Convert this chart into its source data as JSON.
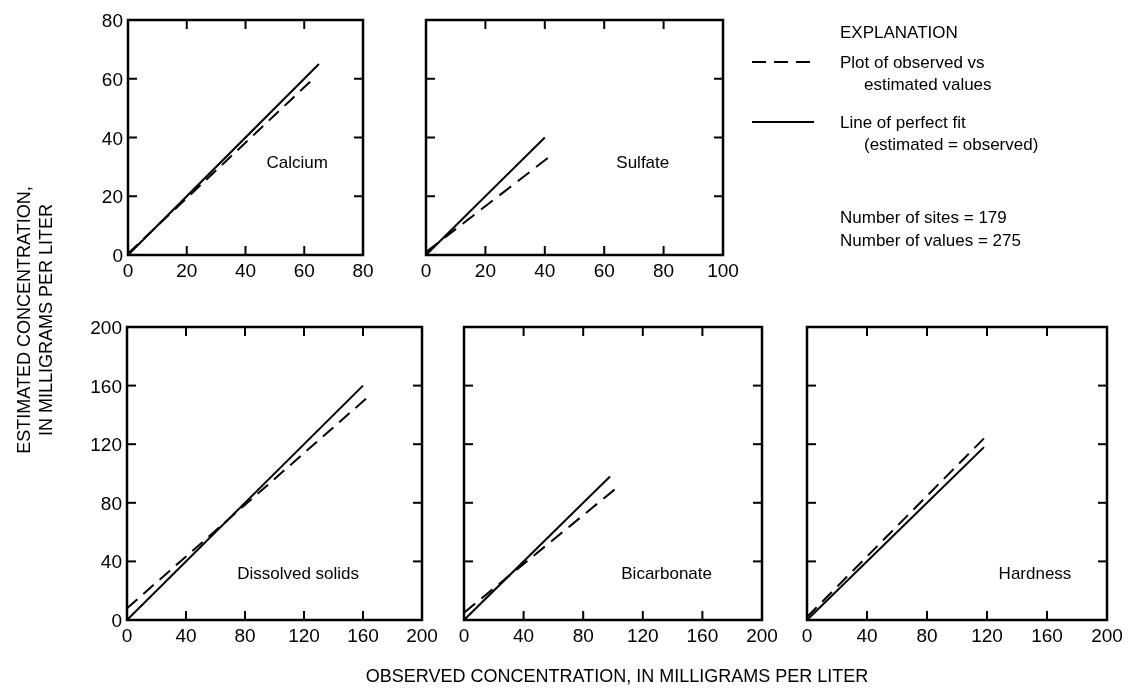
{
  "chart_data": [
    {
      "type": "line",
      "ylabel": "ESTIMATED CONCENTRATION, IN MILLIGRAMS PER LITER",
      "annotations": [
        "Calcium"
      ],
      "xlim": [
        0,
        80
      ],
      "ylim": [
        0,
        80
      ],
      "xticks": [
        0,
        20,
        40,
        60,
        80
      ],
      "yticks": [
        0,
        20,
        40,
        60,
        80
      ],
      "series": [
        {
          "color": "#000000",
          "line_style": "dashed",
          "x": [
            0,
            62
          ],
          "values": [
            0.5,
            59
          ]
        },
        {
          "color": "#000000",
          "line_style": "solid",
          "x": [
            0,
            65
          ],
          "values": [
            0,
            65
          ]
        }
      ]
    },
    {
      "type": "line",
      "legend_title": "EXPLANATION",
      "legend": "right",
      "annotations": [
        "Sulfate",
        "Number of sites = 179",
        "Number of values = 275"
      ],
      "xlim": [
        0,
        100
      ],
      "ylim": [
        0,
        80
      ],
      "xticks": [
        0,
        20,
        40,
        60,
        80,
        100
      ],
      "yticks": [
        0,
        20,
        40,
        60,
        80
      ],
      "tick_labels": "x",
      "series": [
        {
          "name": "Plot of observed vs estimated values",
          "color": "#000000",
          "line_style": "dashed",
          "x": [
            0,
            41
          ],
          "values": [
            1,
            33
          ]
        },
        {
          "name": "Line of perfect fit (estimated = observed)",
          "color": "#000000",
          "line_style": "solid",
          "x": [
            0,
            40
          ],
          "values": [
            0,
            40
          ]
        }
      ]
    },
    {
      "type": "line",
      "annotations": [
        "Dissolved solids"
      ],
      "xlim": [
        0,
        200
      ],
      "ylim": [
        0,
        200
      ],
      "xticks": [
        0,
        40,
        80,
        120,
        160,
        200
      ],
      "yticks": [
        0,
        40,
        80,
        120,
        160,
        200
      ],
      "series": [
        {
          "color": "#000000",
          "line_style": "dashed",
          "x": [
            0,
            162
          ],
          "values": [
            8,
            151
          ]
        },
        {
          "color": "#000000",
          "line_style": "solid",
          "x": [
            0,
            160
          ],
          "values": [
            0,
            160
          ]
        }
      ]
    },
    {
      "type": "line",
      "xlabel": "OBSERVED CONCENTRATION, IN MILLIGRAMS PER LITER",
      "annotations": [
        "Bicarbonate"
      ],
      "xlim": [
        0,
        200
      ],
      "ylim": [
        0,
        200
      ],
      "xticks": [
        0,
        40,
        80,
        120,
        160,
        200
      ],
      "yticks": [
        0,
        40,
        80,
        120,
        160,
        200
      ],
      "tick_labels": "x",
      "series": [
        {
          "color": "#000000",
          "line_style": "dashed",
          "x": [
            0,
            101
          ],
          "values": [
            5,
            89
          ]
        },
        {
          "color": "#000000",
          "line_style": "solid",
          "x": [
            0,
            98
          ],
          "values": [
            0,
            98
          ]
        }
      ]
    },
    {
      "type": "line",
      "annotations": [
        "Hardness"
      ],
      "xlim": [
        0,
        200
      ],
      "ylim": [
        0,
        200
      ],
      "xticks": [
        0,
        40,
        80,
        120,
        160,
        200
      ],
      "yticks": [
        0,
        40,
        80,
        120,
        160,
        200
      ],
      "tick_labels": "x",
      "series": [
        {
          "color": "#000000",
          "line_style": "dashed",
          "x": [
            0,
            118
          ],
          "values": [
            2,
            124
          ]
        },
        {
          "color": "#000000",
          "line_style": "solid",
          "x": [
            0,
            118
          ],
          "values": [
            0,
            118
          ]
        }
      ]
    }
  ]
}
